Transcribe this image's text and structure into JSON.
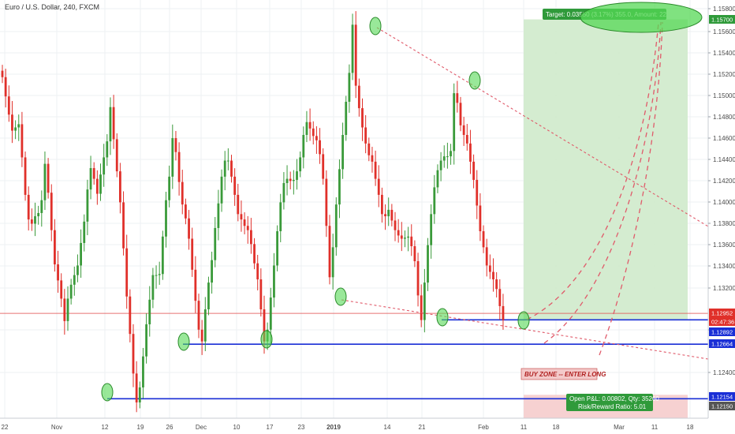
{
  "chart_data": {
    "type": "candlestick",
    "title": "Euro / U.S. Dollar, 240, FXCM",
    "x_tick_labels": [
      "22",
      "Nov",
      "12",
      "19",
      "26",
      "Dec",
      "10",
      "17",
      "23",
      "2019",
      "14",
      "21",
      "Feb",
      "11",
      "18",
      "Mar",
      "11",
      "18"
    ],
    "y_tick_labels": [
      "1.15800",
      "1.15600",
      "1.15400",
      "1.15200",
      "1.15000",
      "1.14800",
      "1.14600",
      "1.14400",
      "1.14200",
      "1.14000",
      "1.13800",
      "1.13600",
      "1.13400",
      "1.13200",
      "1.12800",
      "1.12400"
    ],
    "ylim": [
      1.1198,
      1.1588
    ],
    "series_close": [
      1.1516,
      1.1498,
      1.1481,
      1.1466,
      1.1469,
      1.1472,
      1.1441,
      1.1406,
      1.1383,
      1.1379,
      1.1386,
      1.1389,
      1.1401,
      1.1435,
      1.1408,
      1.1373,
      1.1341,
      1.1326,
      1.1309,
      1.1288,
      1.1309,
      1.1322,
      1.1331,
      1.134,
      1.1361,
      1.1381,
      1.1411,
      1.1431,
      1.1421,
      1.1407,
      1.1425,
      1.1441,
      1.1456,
      1.1488,
      1.1458,
      1.1428,
      1.1399,
      1.1356,
      1.1311,
      1.1276,
      1.1239,
      1.1212,
      1.1226,
      1.1255,
      1.1285,
      1.1308,
      1.1331,
      1.1331,
      1.1332,
      1.1367,
      1.1401,
      1.1423,
      1.1459,
      1.1446,
      1.1418,
      1.1397,
      1.1384,
      1.1365,
      1.1336,
      1.1307,
      1.128,
      1.1269,
      1.1299,
      1.1324,
      1.1345,
      1.1375,
      1.1398,
      1.1423,
      1.1438,
      1.1438,
      1.1423,
      1.1406,
      1.1388,
      1.1383,
      1.1377,
      1.1373,
      1.136,
      1.1342,
      1.1327,
      1.1299,
      1.1269,
      1.128,
      1.131,
      1.134,
      1.1372,
      1.1399,
      1.1417,
      1.1421,
      1.1419,
      1.142,
      1.1428,
      1.1441,
      1.1462,
      1.1474,
      1.1468,
      1.1461,
      1.1457,
      1.1444,
      1.1421,
      1.1377,
      1.1329,
      1.1357,
      1.1397,
      1.143,
      1.1462,
      1.1493,
      1.152,
      1.1565,
      1.1508,
      1.1487,
      1.1469,
      1.1454,
      1.1443,
      1.1437,
      1.1421,
      1.1406,
      1.1388,
      1.1386,
      1.1392,
      1.1382,
      1.1373,
      1.1368,
      1.1365,
      1.1366,
      1.1367,
      1.1358,
      1.1344,
      1.1312,
      1.1289,
      1.1324,
      1.1359,
      1.1388,
      1.1413,
      1.1429,
      1.1438,
      1.1442,
      1.1442,
      1.1447,
      1.1501,
      1.1492,
      1.1471,
      1.1462,
      1.1454,
      1.1437,
      1.142,
      1.1396,
      1.1372,
      1.1357,
      1.134,
      1.1334,
      1.1327,
      1.1318,
      1.1302,
      1.1289
    ],
    "horizontal_levels": [
      1.12892,
      1.12664,
      1.12154
    ],
    "current_price": 1.12952,
    "axis_badges": [
      "1.15700",
      "1.12952",
      "02:47:36",
      "1.12892",
      "1.12664",
      "1.12154",
      "1.12150"
    ],
    "annotations": {
      "target": "Target: 0.03550 (3.17%) 355.0, Amount: 2251.73",
      "buy_zone": "BUY ZONE -- ENTER LONG",
      "pnl_line1": "Open P&L: 0.00802, Qty: 35260",
      "pnl_line2": "Risk/Reward Ratio: 5.01"
    },
    "colors": {
      "up_candle": "#3a9a3a",
      "down_candle": "#e0302a",
      "level_line": "#1a2fd6",
      "price_line": "#e05050",
      "target_zone": "#cfeacb",
      "stop_zone": "#f6cfcf",
      "trendline": "#e05a6a",
      "highlight_ellipse": "#55d855"
    }
  }
}
